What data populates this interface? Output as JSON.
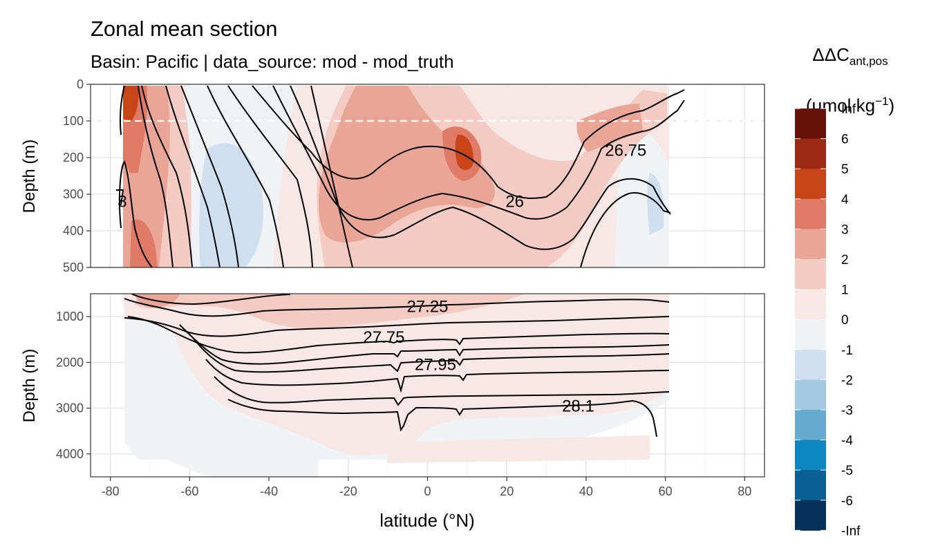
{
  "title": "Zonal mean section",
  "subtitle": "Basin: Pacific | data_source: mod - mod_truth",
  "legend": {
    "title_main": "ΔΔC",
    "title_sub": "ant,pos",
    "unit_prefix": "(μmol kg",
    "unit_sup": "−1",
    "unit_suffix": ")",
    "position": "right"
  },
  "chart_data": {
    "type": "heatmap",
    "title": "Zonal mean section",
    "subtitle": "Basin: Pacific | data_source: mod - mod_truth",
    "xlabel": "latitude (°N)",
    "ylabel": "Depth (m)",
    "xlim": [
      -85,
      85
    ],
    "x_ticks": [
      -80,
      -60,
      -40,
      -20,
      0,
      20,
      40,
      60,
      80
    ],
    "grid": true,
    "panels": [
      {
        "name": "upper",
        "ylim": [
          500,
          0
        ],
        "y_ticks": [
          0,
          100,
          200,
          300,
          400,
          500
        ],
        "reference_line_depth": 100
      },
      {
        "name": "lower",
        "ylim": [
          4500,
          500
        ],
        "y_ticks": [
          1000,
          2000,
          3000,
          4000
        ]
      }
    ],
    "color_scale": {
      "labels": [
        "Inf",
        "6",
        "5",
        "4",
        "3",
        "2",
        "1",
        "0",
        "-1",
        "-2",
        "-3",
        "-4",
        "-5",
        "-6",
        "-Inf"
      ],
      "colors": [
        "#67130c",
        "#9b2913",
        "#c74517",
        "#df7a66",
        "#e9a696",
        "#f3cbc3",
        "#f7e8e5",
        "#f0f3f6",
        "#cfdff0",
        "#a3c8e2",
        "#66acd1",
        "#0e86be",
        "#0a5f94",
        "#06315b"
      ]
    },
    "contour_labels": [
      {
        "text": "26.75",
        "x": 50,
        "y": 180
      },
      {
        "text": "26",
        "x": 22,
        "y": 320
      },
      {
        "text": "8",
        "x": -77,
        "y": 320
      },
      {
        "text": "27.25",
        "x": 0,
        "y": 780
      },
      {
        "text": "27.75",
        "x": -11,
        "y": 1450
      },
      {
        "text": "27.95",
        "x": 2,
        "y": 2050
      },
      {
        "text": "28.1",
        "x": 38,
        "y": 2950
      }
    ]
  }
}
